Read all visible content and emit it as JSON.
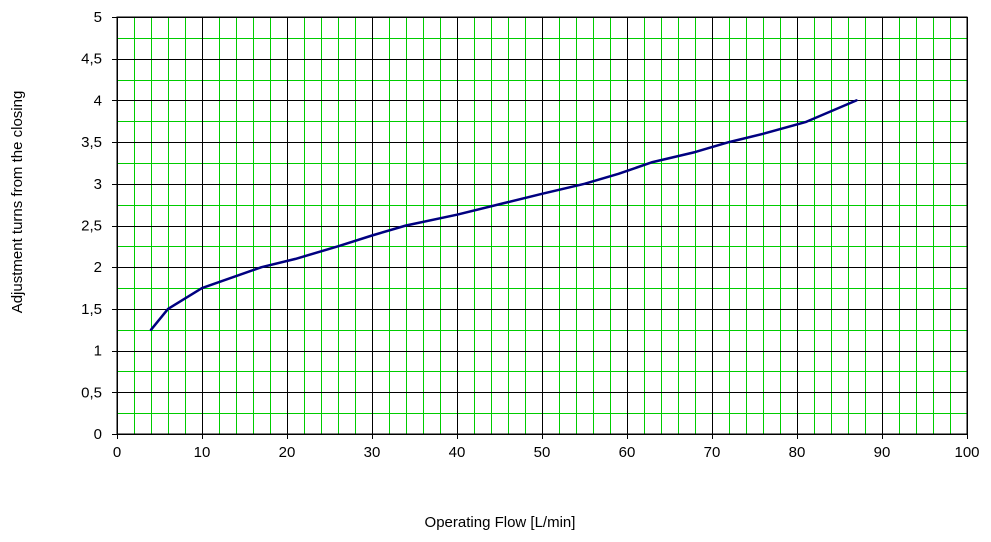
{
  "chart_data": {
    "type": "line",
    "title": "",
    "xlabel": "Operating Flow [L/min]",
    "ylabel": "Adjustment turns from the closing",
    "xlim": [
      0,
      100
    ],
    "ylim": [
      0,
      5
    ],
    "x_ticks": [
      "0",
      "10",
      "20",
      "30",
      "40",
      "50",
      "60",
      "70",
      "80",
      "90",
      "100"
    ],
    "y_ticks": [
      "0",
      "0,5",
      "1",
      "1,5",
      "2",
      "2,5",
      "3",
      "3,5",
      "4",
      "4,5",
      "5"
    ],
    "x_tick_values": [
      0,
      10,
      20,
      30,
      40,
      50,
      60,
      70,
      80,
      90,
      100
    ],
    "y_tick_values": [
      0,
      0.5,
      1,
      1.5,
      2,
      2.5,
      3,
      3.5,
      4,
      4.5,
      5
    ],
    "grid": true,
    "minor_grid_step_x": 2,
    "minor_grid_step_y": 0.25,
    "legend": "none",
    "colors": {
      "line": "#000080",
      "minor_grid": "#00cc00",
      "major_grid": "#000000",
      "background": "#ffffff"
    },
    "series": [
      {
        "x": [
          4,
          6,
          10,
          17,
          21,
          26,
          30,
          34,
          40,
          46,
          50,
          55,
          59,
          63,
          68,
          72,
          76,
          81,
          87
        ],
        "y": [
          1.25,
          1.5,
          1.75,
          2.0,
          2.1,
          2.25,
          2.38,
          2.5,
          2.63,
          2.78,
          2.88,
          3.0,
          3.12,
          3.26,
          3.38,
          3.5,
          3.6,
          3.74,
          4.0
        ]
      }
    ]
  }
}
